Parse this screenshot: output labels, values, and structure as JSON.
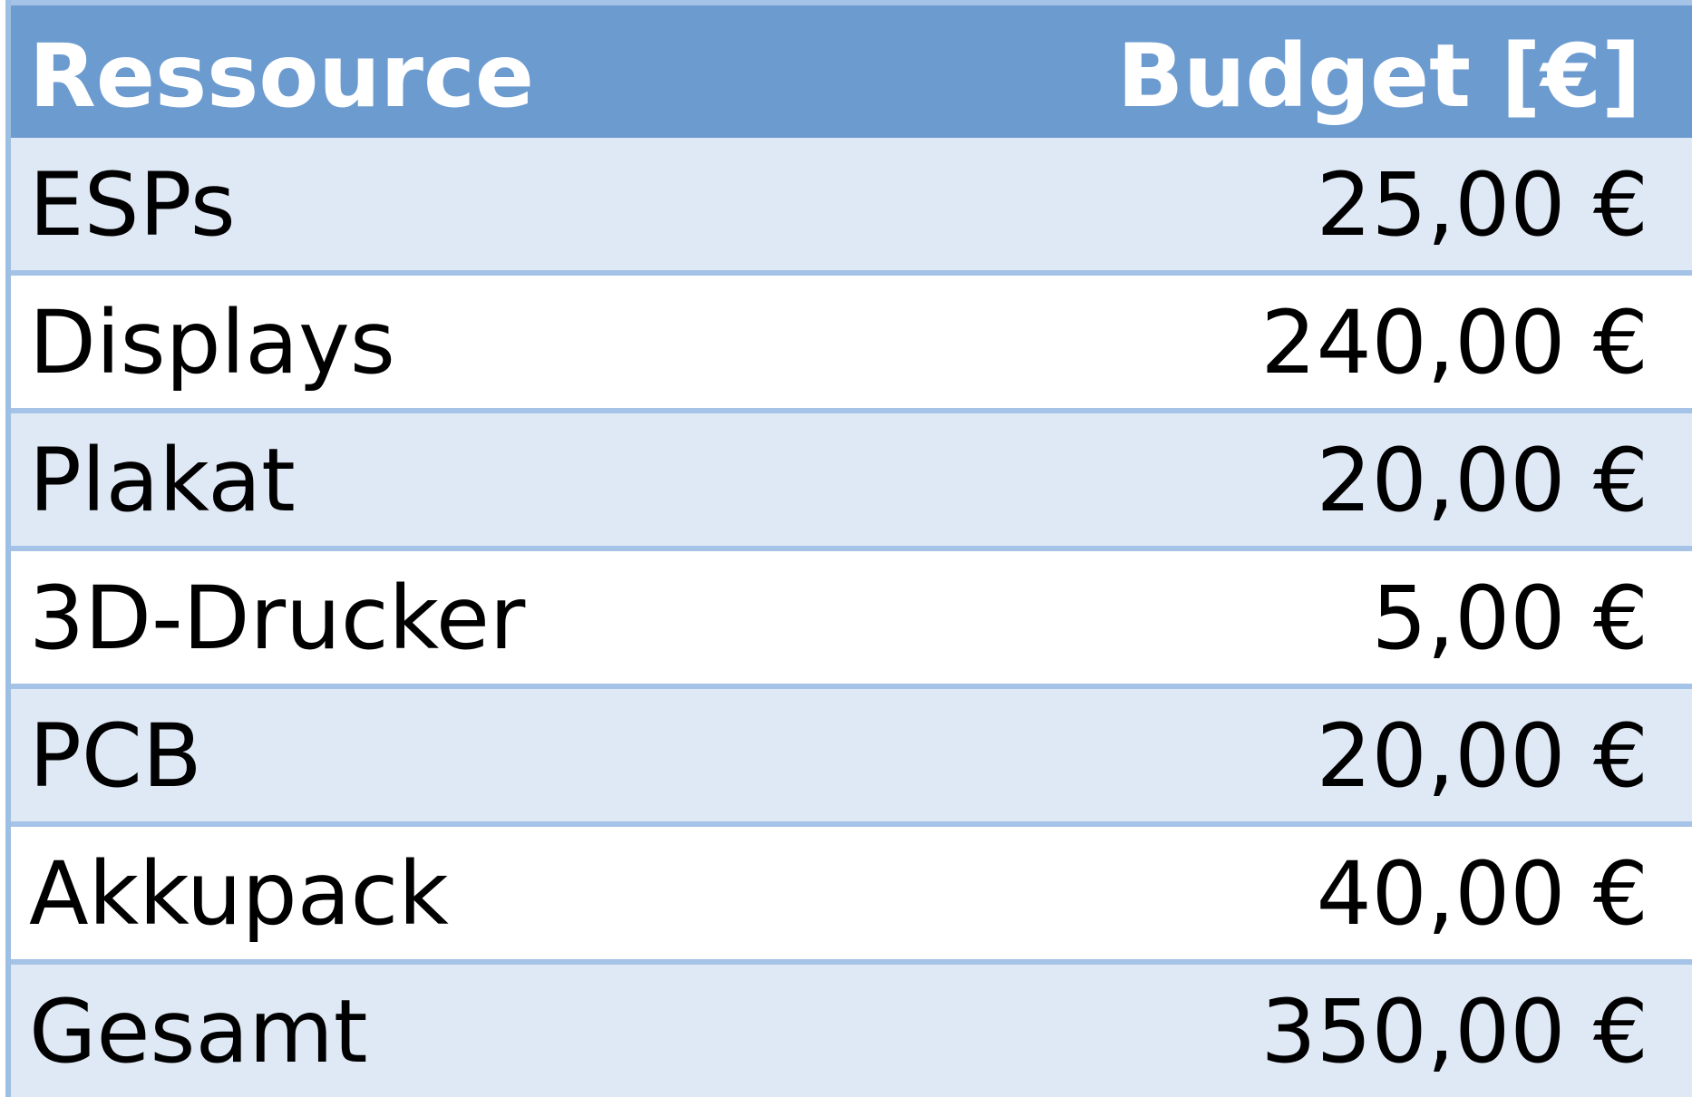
{
  "table": {
    "headers": {
      "resource": "Ressource",
      "budget": "Budget [€]"
    },
    "rows": [
      {
        "resource": "ESPs",
        "budget": "25,00 €"
      },
      {
        "resource": "Displays",
        "budget": "240,00 €"
      },
      {
        "resource": "Plakat",
        "budget": "20,00 €"
      },
      {
        "resource": "3D-Drucker",
        "budget": "5,00 €"
      },
      {
        "resource": "PCB",
        "budget": "20,00 €"
      },
      {
        "resource": "Akkupack",
        "budget": "40,00 €"
      },
      {
        "resource": "Gesamt",
        "budget": "350,00 €"
      }
    ]
  },
  "colors": {
    "header_bg": "#6c9bd0",
    "row_band": "#dfe9f5",
    "row_plain": "#ffffff",
    "border": "#a5c3e6"
  }
}
